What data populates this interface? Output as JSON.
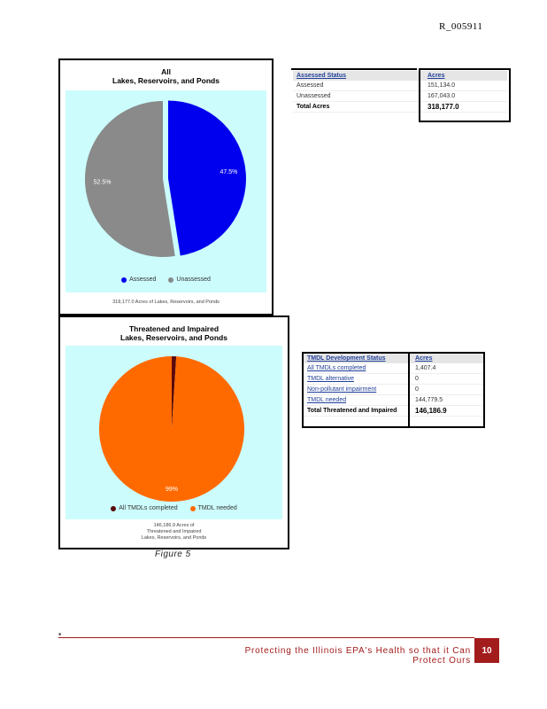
{
  "doc_id": "R_005911",
  "chart1": {
    "title_line1": "All",
    "title_line2": "Lakes, Reservoirs, and Ponds",
    "legend": [
      {
        "label": "Assessed",
        "color": "#0000ee"
      },
      {
        "label": "Unassessed",
        "color": "#8a8a8a"
      }
    ],
    "footnote": "318,177.0 Acres of Lakes, Reservoirs, and Ponds"
  },
  "chart2": {
    "title_line1": "Threatened and Impaired",
    "title_line2": "Lakes, Reservoirs, and Ponds",
    "legend": [
      {
        "label": "All TMDLs completed",
        "color": "#5a0a0a"
      },
      {
        "label": "TMDL needed",
        "color": "#ff6a00"
      }
    ],
    "footnote_line1": "146,186.9 Acres of",
    "footnote_line2": "Threatened and Impaired",
    "footnote_line3": "Lakes, Reservoirs, and Ponds"
  },
  "chart_data": [
    {
      "type": "pie",
      "title": "All Lakes, Reservoirs, and Ponds",
      "categories": [
        "Assessed",
        "Unassessed"
      ],
      "values": [
        47.5,
        52.5
      ],
      "value_labels": [
        "47.5%",
        "52.5%"
      ],
      "colors": [
        "#0000ee",
        "#8a8a8a"
      ],
      "exploded": "Assessed",
      "legend": "bottom"
    },
    {
      "type": "pie",
      "title": "Threatened and Impaired Lakes, Reservoirs, and Ponds",
      "categories": [
        "All TMDLs completed",
        "TMDL needed"
      ],
      "values": [
        1,
        99
      ],
      "value_labels": [
        "",
        "99%"
      ],
      "colors": [
        "#5a0a0a",
        "#ff6a00"
      ],
      "legend": "bottom"
    }
  ],
  "assessed_table": {
    "headers": [
      "Assessed Status",
      "Acres"
    ],
    "rows": [
      [
        "Assessed",
        "151,134.0"
      ],
      [
        "Unassessed",
        "167,043.0"
      ]
    ],
    "total": [
      "Total Acres",
      "318,177.0"
    ]
  },
  "tmdl_table": {
    "headers": [
      "TMDL Development Status",
      "Acres"
    ],
    "rows": [
      [
        "All TMDLs completed",
        "1,407.4"
      ],
      [
        "TMDL alternative",
        "0"
      ],
      [
        "Non-pollutant impairment",
        "0"
      ],
      [
        "TMDL needed",
        "144,779.5"
      ]
    ],
    "total": [
      "Total Threatened and Impaired",
      "146,186.9"
    ]
  },
  "figure_caption": "Figure 5",
  "footer": {
    "text": "Protecting the Illinois EPA's Health so that it Can Protect Ours",
    "page_number": "10"
  }
}
